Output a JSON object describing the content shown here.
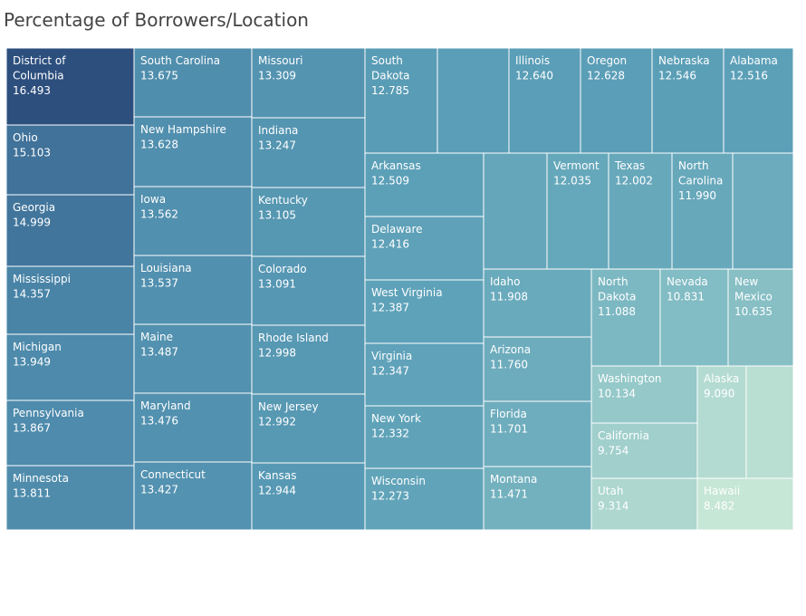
{
  "chart_data": {
    "type": "treemap",
    "title": "Percentage of Borrowers/Location",
    "colors": {
      "low": "#c6e6d6",
      "high": "#2d4f7e",
      "border": "#ffffff"
    },
    "items": [
      {
        "name": "District of Columbia",
        "value": 16.493
      },
      {
        "name": "Ohio",
        "value": 15.103
      },
      {
        "name": "Georgia",
        "value": 14.999
      },
      {
        "name": "Mississippi",
        "value": 14.357
      },
      {
        "name": "Michigan",
        "value": 13.949
      },
      {
        "name": "Pennsylvania",
        "value": 13.867
      },
      {
        "name": "Minnesota",
        "value": 13.811
      },
      {
        "name": "South Carolina",
        "value": 13.675
      },
      {
        "name": "New Hampshire",
        "value": 13.628
      },
      {
        "name": "Iowa",
        "value": 13.562
      },
      {
        "name": "Louisiana",
        "value": 13.537
      },
      {
        "name": "Maine",
        "value": 13.487
      },
      {
        "name": "Maryland",
        "value": 13.476
      },
      {
        "name": "Connecticut",
        "value": 13.427
      },
      {
        "name": "Missouri",
        "value": 13.309
      },
      {
        "name": "Indiana",
        "value": 13.247
      },
      {
        "name": "Kentucky",
        "value": 13.105
      },
      {
        "name": "Colorado",
        "value": 13.091
      },
      {
        "name": "Rhode Island",
        "value": 12.998
      },
      {
        "name": "New Jersey",
        "value": 12.992
      },
      {
        "name": "Kansas",
        "value": 12.944
      },
      {
        "name": "South Dakota",
        "value": 12.785
      },
      {
        "name": "",
        "value": null
      },
      {
        "name": "Illinois",
        "value": 12.64
      },
      {
        "name": "Oregon",
        "value": 12.628
      },
      {
        "name": "Nebraska",
        "value": 12.546
      },
      {
        "name": "Alabama",
        "value": 12.516
      },
      {
        "name": "Arkansas",
        "value": 12.509
      },
      {
        "name": "Delaware",
        "value": 12.416
      },
      {
        "name": "West Virginia",
        "value": 12.387
      },
      {
        "name": "Virginia",
        "value": 12.347
      },
      {
        "name": "New York",
        "value": 12.332
      },
      {
        "name": "Wisconsin",
        "value": 12.273
      },
      {
        "name": "",
        "value": null
      },
      {
        "name": "Vermont",
        "value": 12.035
      },
      {
        "name": "Texas",
        "value": 12.002
      },
      {
        "name": "North Carolina",
        "value": 11.99
      },
      {
        "name": "",
        "value": null
      },
      {
        "name": "Idaho",
        "value": 11.908
      },
      {
        "name": "Arizona",
        "value": 11.76
      },
      {
        "name": "Florida",
        "value": 11.701
      },
      {
        "name": "Montana",
        "value": 11.471
      },
      {
        "name": "North Dakota",
        "value": 11.088
      },
      {
        "name": "Nevada",
        "value": 10.831
      },
      {
        "name": "New Mexico",
        "value": 10.635
      },
      {
        "name": "Washington",
        "value": 10.134
      },
      {
        "name": "California",
        "value": 9.754
      },
      {
        "name": "Alaska",
        "value": 9.09
      },
      {
        "name": "",
        "value": null
      },
      {
        "name": "Utah",
        "value": 9.314
      },
      {
        "name": "Hawaii",
        "value": 8.482
      }
    ]
  }
}
